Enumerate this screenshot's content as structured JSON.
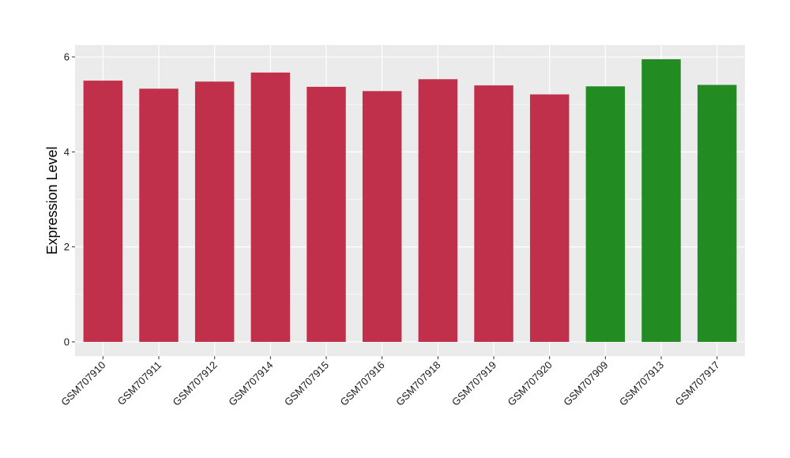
{
  "chart_data": {
    "type": "bar",
    "title": "",
    "xlabel": "",
    "ylabel": "Expression Level",
    "ylim": [
      -0.3,
      6.25
    ],
    "yticks": [
      0,
      2,
      4,
      6
    ],
    "grid": true,
    "legend": "none",
    "categories": [
      "GSM707910",
      "GSM707911",
      "GSM707912",
      "GSM707914",
      "GSM707915",
      "GSM707916",
      "GSM707918",
      "GSM707919",
      "GSM707920",
      "GSM707909",
      "GSM707913",
      "GSM707917"
    ],
    "values": [
      5.5,
      5.33,
      5.48,
      5.67,
      5.37,
      5.28,
      5.53,
      5.4,
      5.21,
      5.38,
      5.95,
      5.41
    ],
    "bar_colors": [
      "#c0304a",
      "#c0304a",
      "#c0304a",
      "#c0304a",
      "#c0304a",
      "#c0304a",
      "#c0304a",
      "#c0304a",
      "#c0304a",
      "#228b22",
      "#228b22",
      "#228b22"
    ],
    "panel_background": "#ebebeb",
    "grid_color": "#ffffff"
  }
}
